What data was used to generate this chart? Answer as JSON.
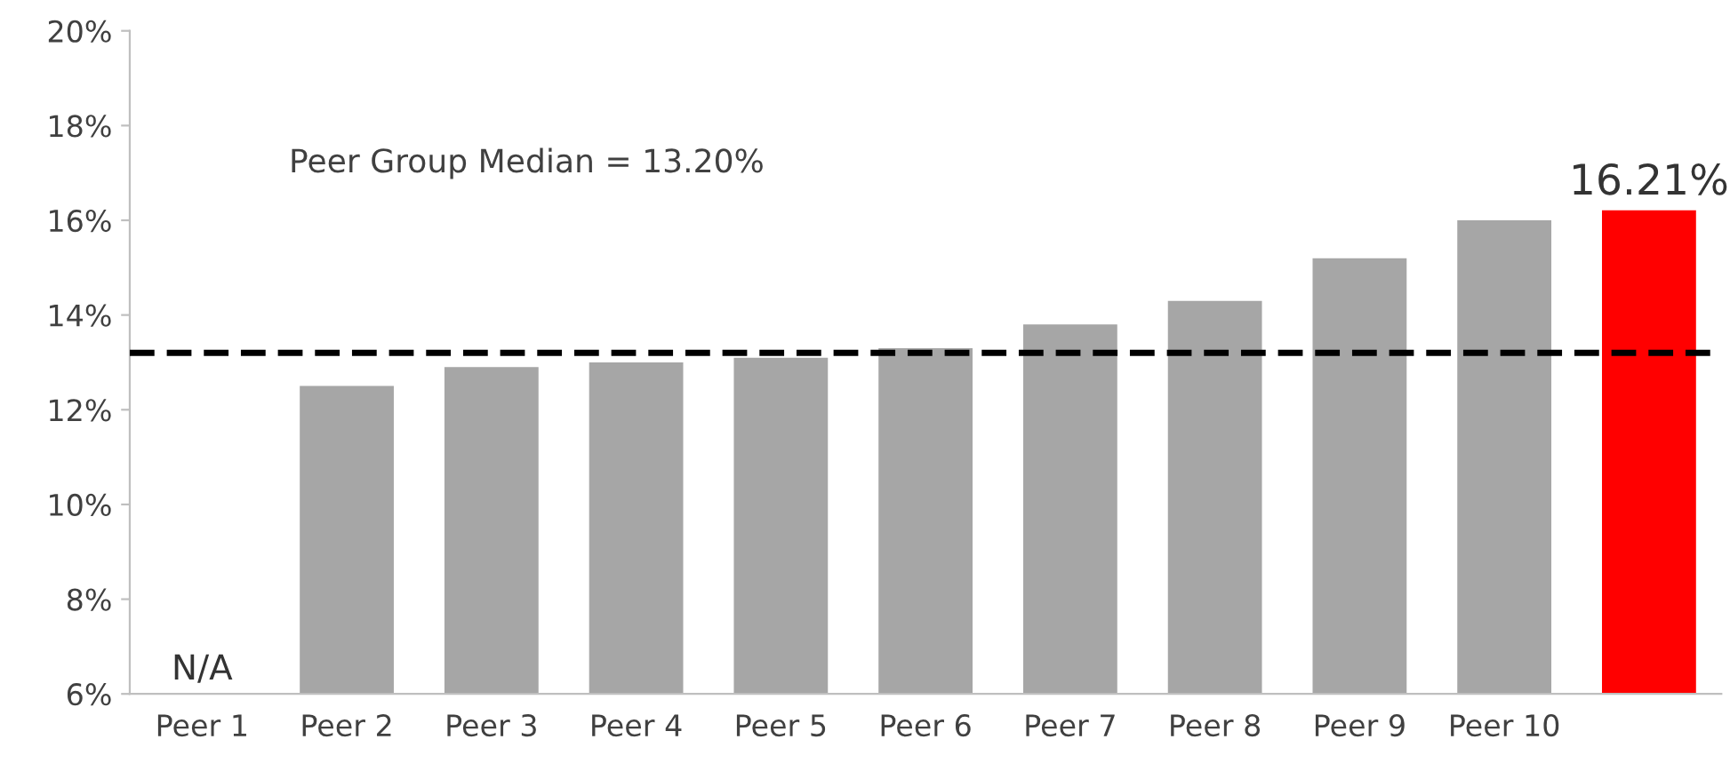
{
  "chart_data": {
    "type": "bar",
    "categories": [
      "Peer 1",
      "Peer 2",
      "Peer 3",
      "Peer 4",
      "Peer 5",
      "Peer 6",
      "Peer 7",
      "Peer 8",
      "Peer 9",
      "Peer 10",
      null
    ],
    "values": [
      null,
      12.5,
      12.9,
      13.0,
      13.1,
      13.3,
      13.8,
      14.3,
      15.2,
      16.0,
      16.21
    ],
    "colors": [
      "#a6a6a6",
      "#a6a6a6",
      "#a6a6a6",
      "#a6a6a6",
      "#a6a6a6",
      "#a6a6a6",
      "#a6a6a6",
      "#a6a6a6",
      "#a6a6a6",
      "#a6a6a6",
      "#ff0000"
    ],
    "value_labels": [
      "N/A",
      null,
      null,
      null,
      null,
      null,
      null,
      null,
      null,
      null,
      "16.21%"
    ],
    "ylim": [
      6,
      20
    ],
    "yticks": [
      {
        "value": 6,
        "label": "6%"
      },
      {
        "value": 8,
        "label": "8%"
      },
      {
        "value": 10,
        "label": "10%"
      },
      {
        "value": 12,
        "label": "12%"
      },
      {
        "value": 14,
        "label": "14%"
      },
      {
        "value": 16,
        "label": "16%"
      },
      {
        "value": 18,
        "label": "18%"
      },
      {
        "value": 20,
        "label": "20%"
      }
    ],
    "ref_lines": [
      {
        "axis": "y",
        "value": 13.2,
        "color": "#000000",
        "line_style": "dashed"
      }
    ],
    "annotations": [
      "Peer Group Median = 13.20%"
    ],
    "grid": false,
    "legend": false
  }
}
